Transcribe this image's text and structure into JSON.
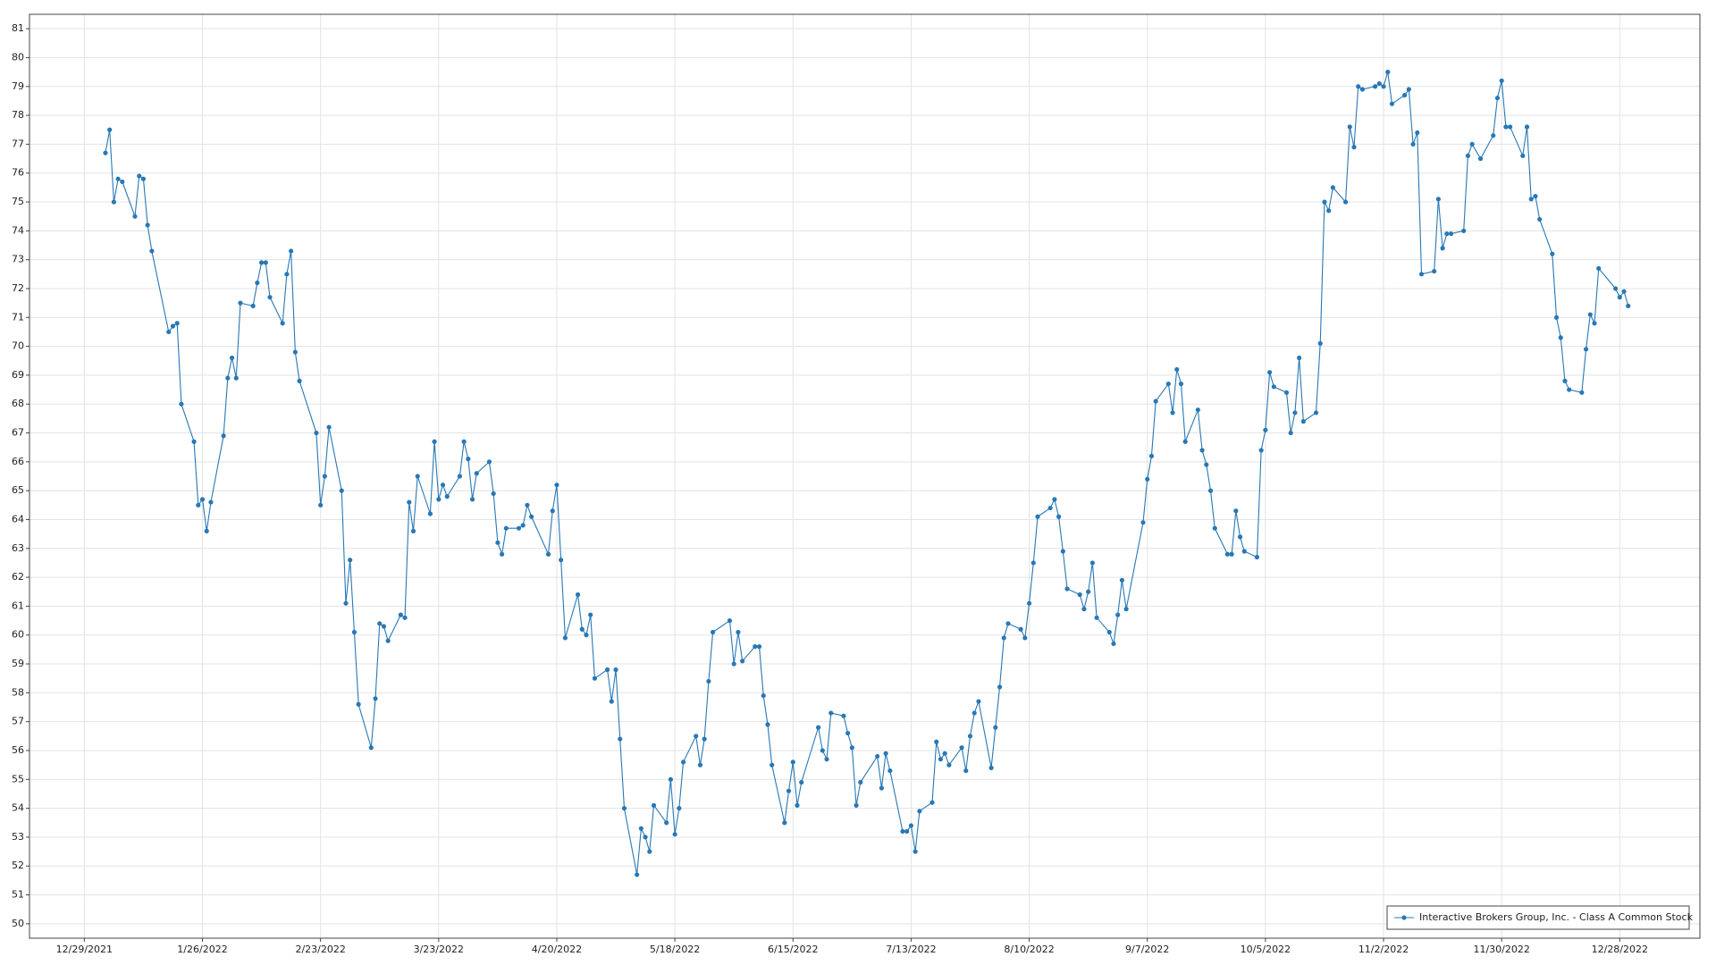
{
  "chart_data": {
    "type": "line",
    "grid": true,
    "legend": "lower right",
    "xlim": [
      "12/16/2021",
      "1/16/2023"
    ],
    "xticks": [
      "12/29/2021",
      "1/26/2022",
      "2/23/2022",
      "3/23/2022",
      "4/20/2022",
      "5/18/2022",
      "6/15/2022",
      "7/13/2022",
      "8/10/2022",
      "9/7/2022",
      "10/5/2022",
      "11/2/2022",
      "11/30/2022",
      "12/28/2022"
    ],
    "ylim": [
      49.5,
      81.5
    ],
    "yticks": [
      50,
      51,
      52,
      53,
      54,
      55,
      56,
      57,
      58,
      59,
      60,
      61,
      62,
      63,
      64,
      65,
      66,
      67,
      68,
      69,
      70,
      71,
      72,
      73,
      74,
      75,
      76,
      77,
      78,
      79,
      80,
      81
    ],
    "x": [
      "1/3/2022",
      "1/4/2022",
      "1/5/2022",
      "1/6/2022",
      "1/7/2022",
      "1/10/2022",
      "1/11/2022",
      "1/12/2022",
      "1/13/2022",
      "1/14/2022",
      "1/18/2022",
      "1/19/2022",
      "1/20/2022",
      "1/21/2022",
      "1/24/2022",
      "1/25/2022",
      "1/26/2022",
      "1/27/2022",
      "1/28/2022",
      "1/31/2022",
      "2/1/2022",
      "2/2/2022",
      "2/3/2022",
      "2/4/2022",
      "2/7/2022",
      "2/8/2022",
      "2/9/2022",
      "2/10/2022",
      "2/11/2022",
      "2/14/2022",
      "2/15/2022",
      "2/16/2022",
      "2/17/2022",
      "2/18/2022",
      "2/22/2022",
      "2/23/2022",
      "2/24/2022",
      "2/25/2022",
      "2/28/2022",
      "3/1/2022",
      "3/2/2022",
      "3/3/2022",
      "3/4/2022",
      "3/7/2022",
      "3/8/2022",
      "3/9/2022",
      "3/10/2022",
      "3/11/2022",
      "3/14/2022",
      "3/15/2022",
      "3/16/2022",
      "3/17/2022",
      "3/18/2022",
      "3/21/2022",
      "3/22/2022",
      "3/23/2022",
      "3/24/2022",
      "3/25/2022",
      "3/28/2022",
      "3/29/2022",
      "3/30/2022",
      "3/31/2022",
      "4/1/2022",
      "4/4/2022",
      "4/5/2022",
      "4/6/2022",
      "4/7/2022",
      "4/8/2022",
      "4/11/2022",
      "4/12/2022",
      "4/13/2022",
      "4/14/2022",
      "4/18/2022",
      "4/19/2022",
      "4/20/2022",
      "4/21/2022",
      "4/22/2022",
      "4/25/2022",
      "4/26/2022",
      "4/27/2022",
      "4/28/2022",
      "4/29/2022",
      "5/2/2022",
      "5/3/2022",
      "5/4/2022",
      "5/5/2022",
      "5/6/2022",
      "5/9/2022",
      "5/10/2022",
      "5/11/2022",
      "5/12/2022",
      "5/13/2022",
      "5/16/2022",
      "5/17/2022",
      "5/18/2022",
      "5/19/2022",
      "5/20/2022",
      "5/23/2022",
      "5/24/2022",
      "5/25/2022",
      "5/26/2022",
      "5/27/2022",
      "5/31/2022",
      "6/1/2022",
      "6/2/2022",
      "6/3/2022",
      "6/6/2022",
      "6/7/2022",
      "6/8/2022",
      "6/9/2022",
      "6/10/2022",
      "6/13/2022",
      "6/14/2022",
      "6/15/2022",
      "6/16/2022",
      "6/17/2022",
      "6/21/2022",
      "6/22/2022",
      "6/23/2022",
      "6/24/2022",
      "6/27/2022",
      "6/28/2022",
      "6/29/2022",
      "6/30/2022",
      "7/1/2022",
      "7/5/2022",
      "7/6/2022",
      "7/7/2022",
      "7/8/2022",
      "7/11/2022",
      "7/12/2022",
      "7/13/2022",
      "7/14/2022",
      "7/15/2022",
      "7/18/2022",
      "7/19/2022",
      "7/20/2022",
      "7/21/2022",
      "7/22/2022",
      "7/25/2022",
      "7/26/2022",
      "7/27/2022",
      "7/28/2022",
      "7/29/2022",
      "8/1/2022",
      "8/2/2022",
      "8/3/2022",
      "8/4/2022",
      "8/5/2022",
      "8/8/2022",
      "8/9/2022",
      "8/10/2022",
      "8/11/2022",
      "8/12/2022",
      "8/15/2022",
      "8/16/2022",
      "8/17/2022",
      "8/18/2022",
      "8/19/2022",
      "8/22/2022",
      "8/23/2022",
      "8/24/2022",
      "8/25/2022",
      "8/26/2022",
      "8/29/2022",
      "8/30/2022",
      "8/31/2022",
      "9/1/2022",
      "9/2/2022",
      "9/6/2022",
      "9/7/2022",
      "9/8/2022",
      "9/9/2022",
      "9/12/2022",
      "9/13/2022",
      "9/14/2022",
      "9/15/2022",
      "9/16/2022",
      "9/19/2022",
      "9/20/2022",
      "9/21/2022",
      "9/22/2022",
      "9/23/2022",
      "9/26/2022",
      "9/27/2022",
      "9/28/2022",
      "9/29/2022",
      "9/30/2022",
      "10/3/2022",
      "10/4/2022",
      "10/5/2022",
      "10/6/2022",
      "10/7/2022",
      "10/10/2022",
      "10/11/2022",
      "10/12/2022",
      "10/13/2022",
      "10/14/2022",
      "10/17/2022",
      "10/18/2022",
      "10/19/2022",
      "10/20/2022",
      "10/21/2022",
      "10/24/2022",
      "10/25/2022",
      "10/26/2022",
      "10/27/2022",
      "10/28/2022",
      "10/31/2022",
      "11/1/2022",
      "11/2/2022",
      "11/3/2022",
      "11/4/2022",
      "11/7/2022",
      "11/8/2022",
      "11/9/2022",
      "11/10/2022",
      "11/11/2022",
      "11/14/2022",
      "11/15/2022",
      "11/16/2022",
      "11/17/2022",
      "11/18/2022",
      "11/21/2022",
      "11/22/2022",
      "11/23/2022",
      "11/25/2022",
      "11/28/2022",
      "11/29/2022",
      "11/30/2022",
      "12/1/2022",
      "12/2/2022",
      "12/5/2022",
      "12/6/2022",
      "12/7/2022",
      "12/8/2022",
      "12/9/2022",
      "12/12/2022",
      "12/13/2022",
      "12/14/2022",
      "12/15/2022",
      "12/16/2022",
      "12/19/2022",
      "12/20/2022",
      "12/21/2022",
      "12/22/2022",
      "12/23/2022",
      "12/27/2022",
      "12/28/2022",
      "12/29/2022",
      "12/30/2022"
    ],
    "series": [
      {
        "name": "Interactive Brokers Group, Inc. - Class A Common Stock",
        "color": "#2878b5",
        "values": [
          76.7,
          77.5,
          75.0,
          75.8,
          75.7,
          74.5,
          75.9,
          75.8,
          74.2,
          73.3,
          70.5,
          70.7,
          70.8,
          68.0,
          66.7,
          64.5,
          64.7,
          63.6,
          64.6,
          66.9,
          68.9,
          69.6,
          68.9,
          71.5,
          71.4,
          72.2,
          72.9,
          72.9,
          71.7,
          70.8,
          72.5,
          73.3,
          69.8,
          68.8,
          67.0,
          64.5,
          65.5,
          67.2,
          65.0,
          61.1,
          62.6,
          60.1,
          57.6,
          56.1,
          57.8,
          60.4,
          60.3,
          59.8,
          60.7,
          60.6,
          64.6,
          63.6,
          65.5,
          64.2,
          66.7,
          64.7,
          65.2,
          64.8,
          65.5,
          66.7,
          66.1,
          64.7,
          65.6,
          66.0,
          64.9,
          63.2,
          62.8,
          63.7,
          63.7,
          63.8,
          64.5,
          64.1,
          62.8,
          64.3,
          65.2,
          62.6,
          59.9,
          61.4,
          60.2,
          60.0,
          60.7,
          58.5,
          58.8,
          57.7,
          58.8,
          56.4,
          54.0,
          51.7,
          53.3,
          53.0,
          52.5,
          54.1,
          53.5,
          55.0,
          53.1,
          54.0,
          55.6,
          56.5,
          55.5,
          56.4,
          58.4,
          60.1,
          60.5,
          59.0,
          60.1,
          59.1,
          59.6,
          59.6,
          57.9,
          56.9,
          55.5,
          53.5,
          54.6,
          55.6,
          54.1,
          54.9,
          56.8,
          56.0,
          55.7,
          57.3,
          57.2,
          56.6,
          56.1,
          54.1,
          54.9,
          55.8,
          54.7,
          55.9,
          55.3,
          53.2,
          53.2,
          53.4,
          52.5,
          53.9,
          54.2,
          56.3,
          55.7,
          55.9,
          55.5,
          56.1,
          55.3,
          56.5,
          57.3,
          57.7,
          55.4,
          56.8,
          58.2,
          59.9,
          60.4,
          60.2,
          59.9,
          61.1,
          62.5,
          64.1,
          64.4,
          64.7,
          64.1,
          62.9,
          61.6,
          61.4,
          60.9,
          61.5,
          62.5,
          60.6,
          60.1,
          59.7,
          60.7,
          61.9,
          60.9,
          63.9,
          65.4,
          66.2,
          68.1,
          68.7,
          67.7,
          69.2,
          68.7,
          66.7,
          67.8,
          66.4,
          65.9,
          65.0,
          63.7,
          62.8,
          62.8,
          64.3,
          63.4,
          62.9,
          62.7,
          66.4,
          67.1,
          69.1,
          68.6,
          68.4,
          67.0,
          67.7,
          69.6,
          67.4,
          67.7,
          70.1,
          75.0,
          74.7,
          75.5,
          75.0,
          77.6,
          76.9,
          79.0,
          78.9,
          79.0,
          79.1,
          79.0,
          79.5,
          78.4,
          78.7,
          78.9,
          77.0,
          77.4,
          72.5,
          72.6,
          75.1,
          73.4,
          73.9,
          73.9,
          74.0,
          76.6,
          77.0,
          76.5,
          77.3,
          78.6,
          79.2,
          77.6,
          77.6,
          76.6,
          77.6,
          75.1,
          75.2,
          74.4,
          73.2,
          71.0,
          70.3,
          68.8,
          68.5,
          68.4,
          69.9,
          71.1,
          70.8,
          72.7,
          72.0,
          71.7,
          71.9,
          71.4
        ]
      }
    ]
  }
}
